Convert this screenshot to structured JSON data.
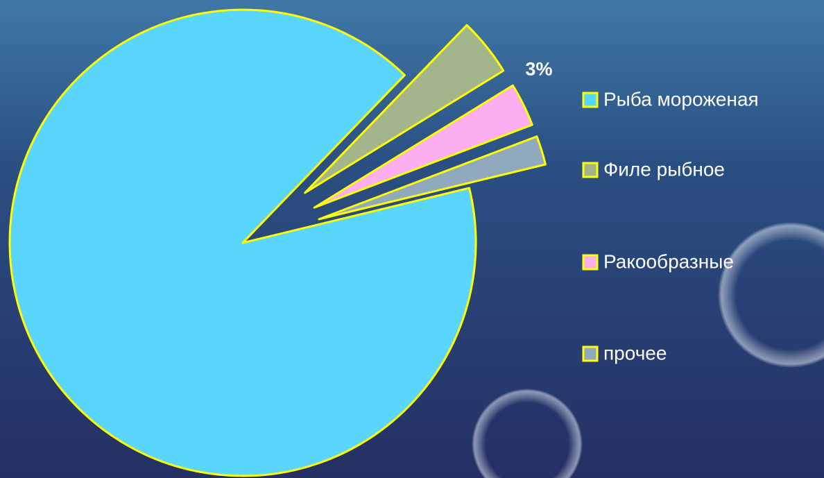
{
  "chart_data": {
    "type": "pie",
    "categories": [
      "Рыба мороженая",
      "Филе рыбное",
      "Ракообразные",
      "прочее"
    ],
    "values": [
      91,
      4,
      3,
      2
    ],
    "value_labels": [
      null,
      null,
      "3%",
      null
    ],
    "colors": [
      "#5ad5fb",
      "#a2b58b",
      "#fbaef0",
      "#90a9bc"
    ],
    "legend": "right"
  }
}
